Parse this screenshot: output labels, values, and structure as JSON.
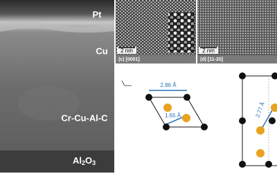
{
  "tem": {
    "layers": [
      "Pt",
      "Cu",
      "Cr-Cu-Al-C"
    ],
    "substrate": [
      "Al",
      "2",
      "O",
      "3"
    ]
  },
  "hrtem": [
    {
      "scale_bar": "2 nm",
      "caption": "(c) [0001]"
    },
    {
      "scale_bar": "2 nm",
      "caption": "(d) [11-20]"
    }
  ],
  "diagrams": {
    "c": [
      "2.86 Å",
      "1.65 Å"
    ],
    "d": [
      "2.77 Å"
    ]
  }
}
